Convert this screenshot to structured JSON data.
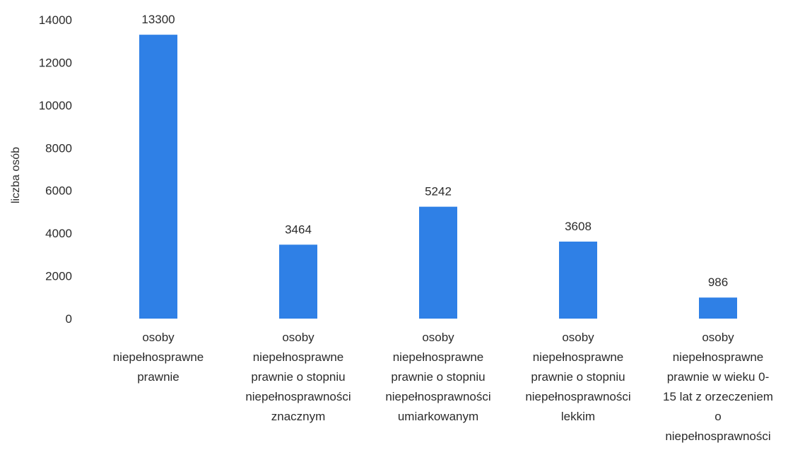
{
  "chart_data": {
    "type": "bar",
    "title": "",
    "xlabel": "",
    "ylabel": "liczba osób",
    "ylim": [
      0,
      14000
    ],
    "yticks": [
      "0",
      "2000",
      "4000",
      "6000",
      "8000",
      "10000",
      "12000",
      "14000"
    ],
    "grid": false,
    "categories": [
      [
        "osoby",
        "niepełnosprawne",
        "prawnie"
      ],
      [
        "osoby",
        "niepełnosprawne",
        "prawnie o stopniu",
        "niepełnosprawności",
        "znacznym"
      ],
      [
        "osoby",
        "niepełnosprawne",
        "prawnie o stopniu",
        "niepełnosprawności",
        "umiarkowanym"
      ],
      [
        "osoby",
        "niepełnosprawne",
        "prawnie o stopniu",
        "niepełnosprawności",
        "lekkim"
      ],
      [
        "osoby",
        "niepełnosprawne",
        "prawnie w wieku 0-",
        "15 lat z orzeczeniem",
        "o",
        "niepełnosprawności"
      ]
    ],
    "values": [
      13300,
      3464,
      5242,
      3608,
      986
    ],
    "data_labels": [
      "13300",
      "3464",
      "5242",
      "3608",
      "986"
    ],
    "colors": {
      "bar": "#2f80e6"
    }
  }
}
